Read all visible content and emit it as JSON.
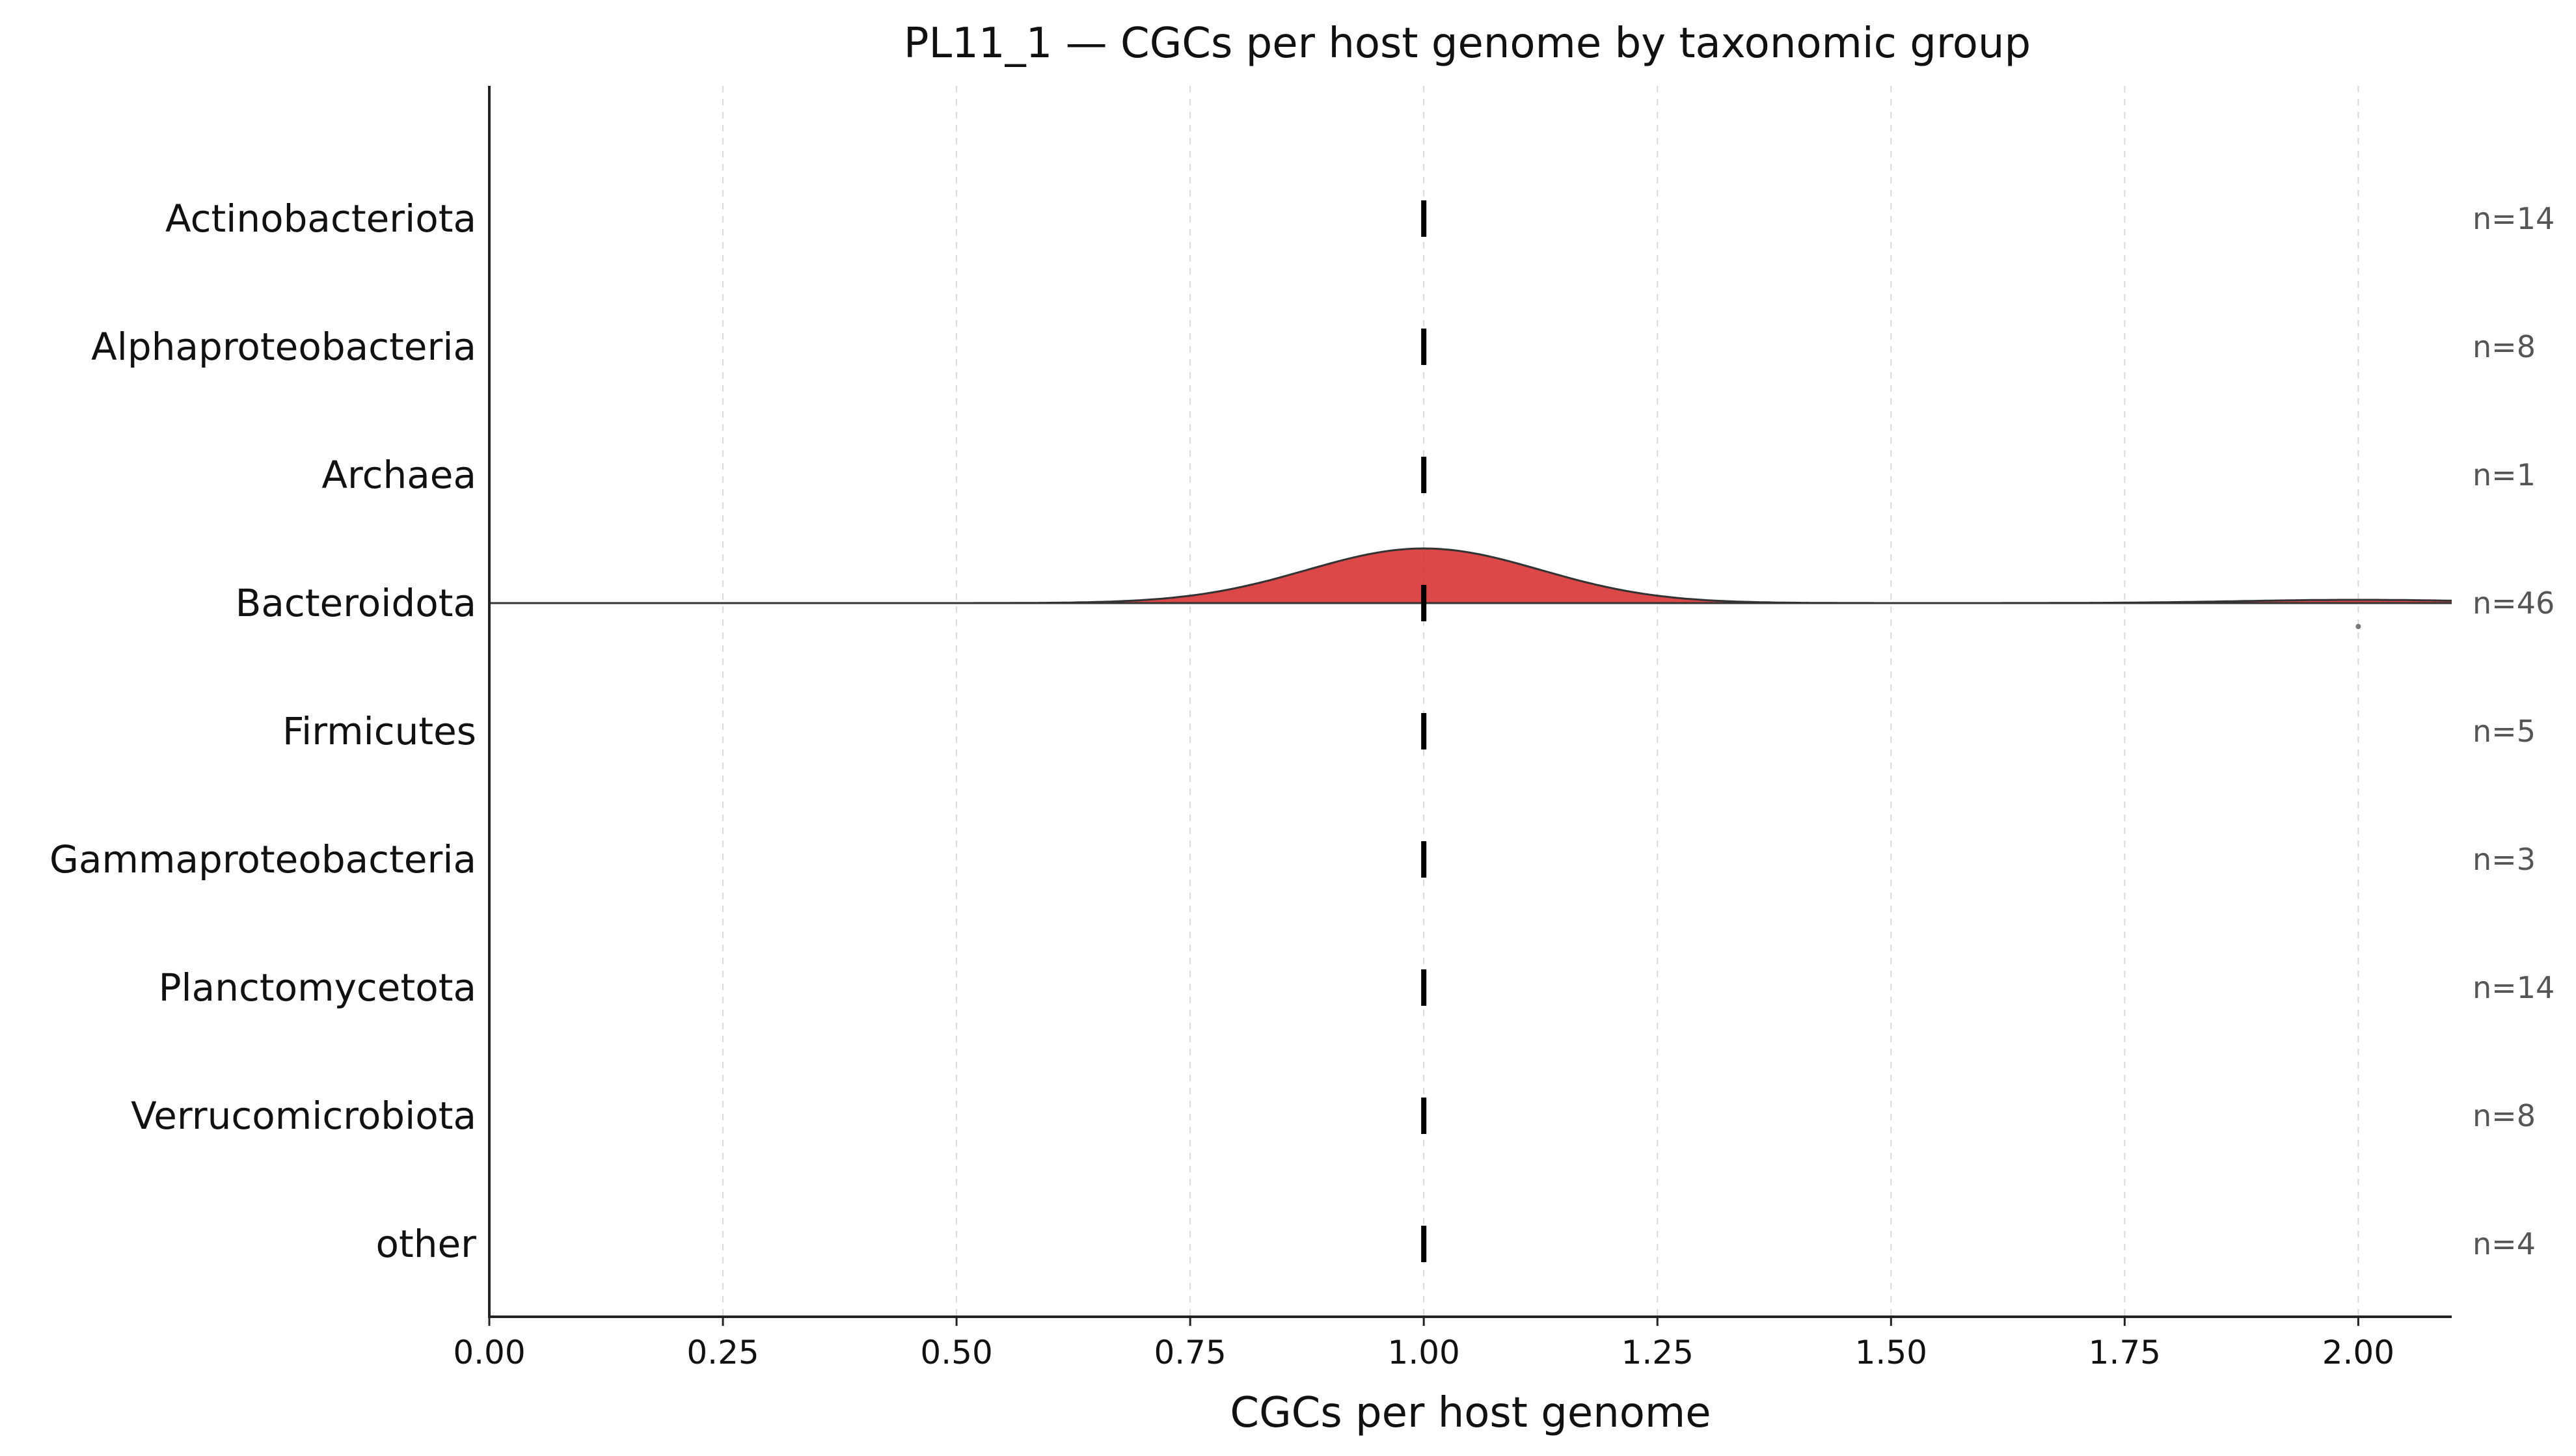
{
  "chart_data": {
    "type": "ridgeline",
    "title": "PL11_1 — CGCs per host genome by taxonomic group",
    "xlabel": "CGCs per host genome",
    "ylabel": "",
    "xlim": [
      0,
      2.1
    ],
    "xticks": [
      "0.00",
      "0.25",
      "0.50",
      "0.75",
      "1.00",
      "1.25",
      "1.50",
      "1.75",
      "2.00"
    ],
    "grid": "vertical dashed",
    "fill_color": "#d62728",
    "groups": [
      {
        "name": "Actinobacteriota",
        "n_label": "n=14",
        "median": 1.0,
        "density": "none"
      },
      {
        "name": "Alphaproteobacteria",
        "n_label": "n=8",
        "median": 1.0,
        "density": "none"
      },
      {
        "name": "Archaea",
        "n_label": "n=1",
        "median": 1.0,
        "density": "none"
      },
      {
        "name": "Bacteroidota",
        "n_label": "n=46",
        "median": 1.0,
        "density": "kde",
        "components": [
          {
            "center": 1.0,
            "sd": 0.125,
            "weight": 1.0
          },
          {
            "center": 2.0,
            "sd": 0.125,
            "weight": 0.06
          }
        ],
        "outliers": [
          2.0
        ]
      },
      {
        "name": "Firmicutes",
        "n_label": "n=5",
        "median": 1.0,
        "density": "none"
      },
      {
        "name": "Gammaproteobacteria",
        "n_label": "n=3",
        "median": 1.0,
        "density": "none"
      },
      {
        "name": "Planctomycetota",
        "n_label": "n=14",
        "median": 1.0,
        "density": "none"
      },
      {
        "name": "Verrucomicrobiota",
        "n_label": "n=8",
        "median": 1.0,
        "density": "none"
      },
      {
        "name": "other",
        "n_label": "n=4",
        "median": 1.0,
        "density": "none"
      }
    ]
  }
}
